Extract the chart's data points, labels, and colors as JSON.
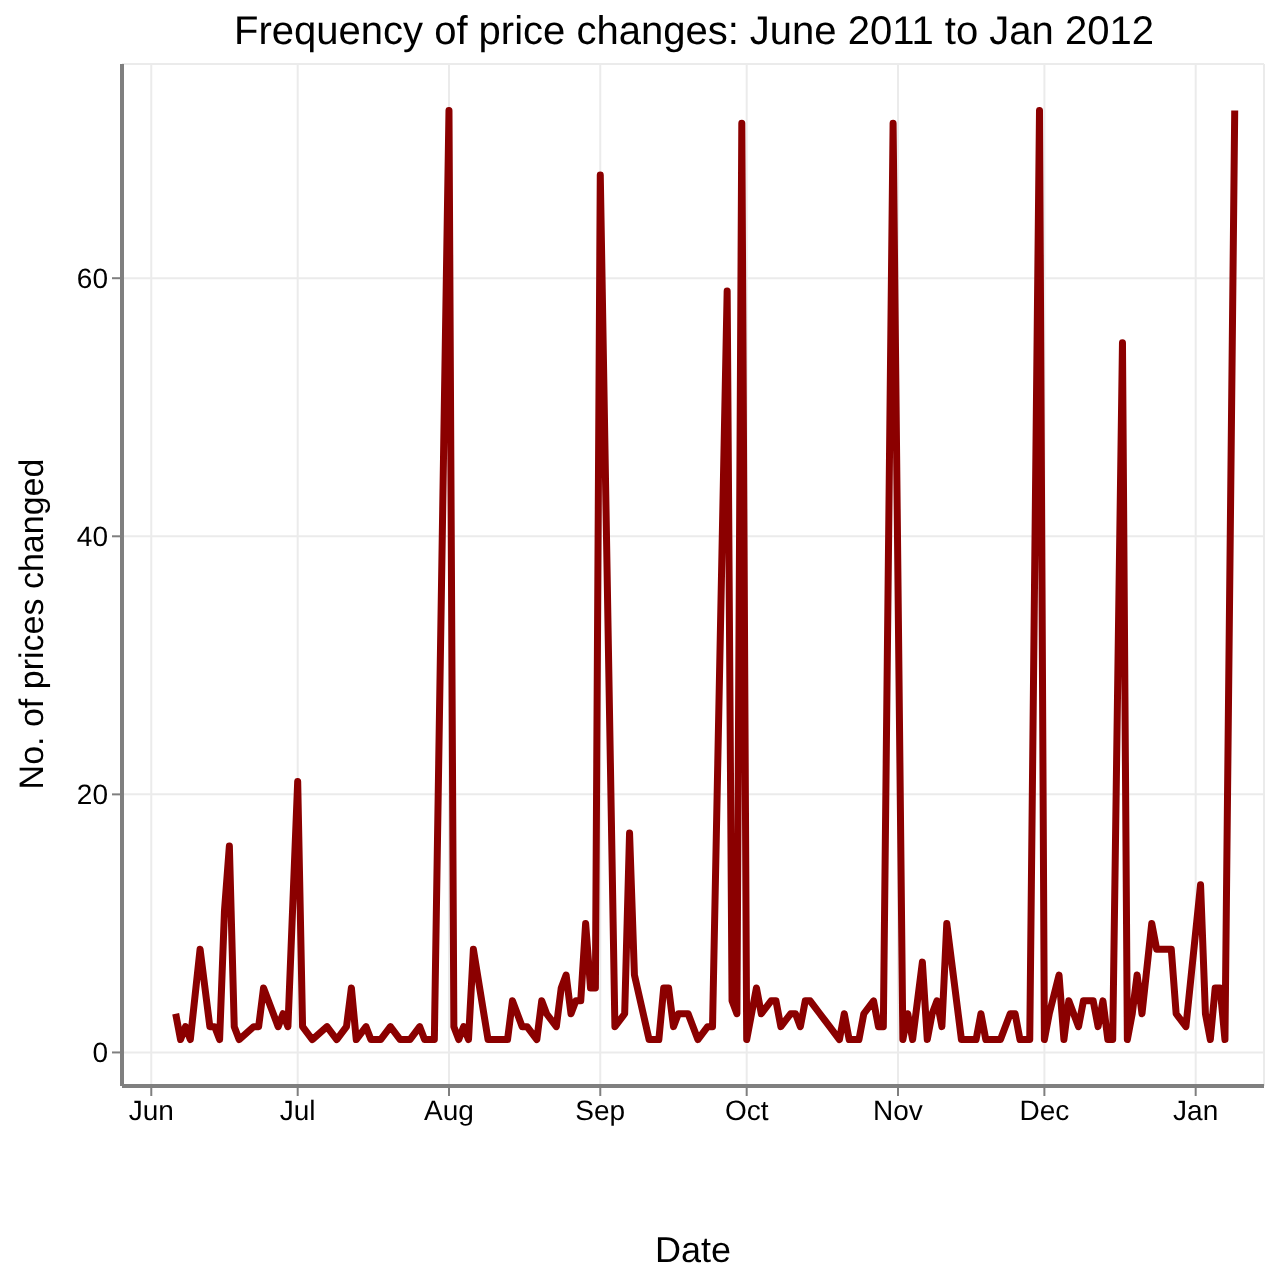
{
  "chart_data": {
    "type": "line",
    "title": "Frequency of price changes: June 2011 to Jan 2012",
    "xlabel": "Date",
    "ylabel": "No. of prices changed",
    "x": [
      "2011-06-06",
      "2011-06-07",
      "2011-06-08",
      "2011-06-09",
      "2011-06-11",
      "2011-06-13",
      "2011-06-14",
      "2011-06-15",
      "2011-06-16",
      "2011-06-17",
      "2011-06-18",
      "2011-06-19",
      "2011-06-22",
      "2011-06-23",
      "2011-06-24",
      "2011-06-27",
      "2011-06-28",
      "2011-06-29",
      "2011-07-01",
      "2011-07-02",
      "2011-07-04",
      "2011-07-07",
      "2011-07-09",
      "2011-07-11",
      "2011-07-12",
      "2011-07-13",
      "2011-07-15",
      "2011-07-16",
      "2011-07-18",
      "2011-07-20",
      "2011-07-22",
      "2011-07-24",
      "2011-07-26",
      "2011-07-27",
      "2011-07-29",
      "2011-08-01",
      "2011-08-02",
      "2011-08-03",
      "2011-08-04",
      "2011-08-05",
      "2011-08-06",
      "2011-08-09",
      "2011-08-13",
      "2011-08-14",
      "2011-08-16",
      "2011-08-17",
      "2011-08-19",
      "2011-08-20",
      "2011-08-21",
      "2011-08-23",
      "2011-08-24",
      "2011-08-25",
      "2011-08-26",
      "2011-08-27",
      "2011-08-28",
      "2011-08-29",
      "2011-08-30",
      "2011-08-31",
      "2011-09-01",
      "2011-09-04",
      "2011-09-06",
      "2011-09-07",
      "2011-09-08",
      "2011-09-11",
      "2011-09-13",
      "2011-09-14",
      "2011-09-15",
      "2011-09-16",
      "2011-09-17",
      "2011-09-19",
      "2011-09-21",
      "2011-09-23",
      "2011-09-24",
      "2011-09-27",
      "2011-09-28",
      "2011-09-29",
      "2011-09-30",
      "2011-10-01",
      "2011-10-03",
      "2011-10-04",
      "2011-10-06",
      "2011-10-07",
      "2011-10-08",
      "2011-10-10",
      "2011-10-11",
      "2011-10-12",
      "2011-10-13",
      "2011-10-14",
      "2011-10-16",
      "2011-10-18",
      "2011-10-20",
      "2011-10-21",
      "2011-10-22",
      "2011-10-24",
      "2011-10-25",
      "2011-10-27",
      "2011-10-28",
      "2011-10-29",
      "2011-10-31",
      "2011-11-02",
      "2011-11-03",
      "2011-11-04",
      "2011-11-06",
      "2011-11-07",
      "2011-11-08",
      "2011-11-09",
      "2011-11-10",
      "2011-11-11",
      "2011-11-12",
      "2011-11-14",
      "2011-11-17",
      "2011-11-18",
      "2011-11-19",
      "2011-11-22",
      "2011-11-24",
      "2011-11-25",
      "2011-11-26",
      "2011-11-28",
      "2011-11-30",
      "2011-12-01",
      "2011-12-02",
      "2011-12-04",
      "2011-12-05",
      "2011-12-06",
      "2011-12-07",
      "2011-12-08",
      "2011-12-09",
      "2011-12-11",
      "2011-12-12",
      "2011-12-13",
      "2011-12-14",
      "2011-12-15",
      "2011-12-17",
      "2011-12-18",
      "2011-12-19",
      "2011-12-20",
      "2011-12-21",
      "2011-12-23",
      "2011-12-24",
      "2011-12-27",
      "2011-12-28",
      "2011-12-30",
      "2012-01-02",
      "2012-01-03",
      "2012-01-04",
      "2012-01-05",
      "2012-01-06",
      "2012-01-07",
      "2012-01-09"
    ],
    "series": [
      {
        "color": "#8b0000",
        "values": [
          3,
          1,
          2,
          1,
          8,
          2,
          2,
          1,
          11,
          16,
          2,
          1,
          2,
          2,
          5,
          2,
          3,
          2,
          21,
          2,
          1,
          2,
          1,
          2,
          5,
          1,
          2,
          1,
          1,
          2,
          1,
          1,
          2,
          1,
          1,
          73,
          2,
          1,
          2,
          1,
          8,
          1,
          1,
          4,
          2,
          2,
          1,
          4,
          3,
          2,
          5,
          6,
          3,
          4,
          4,
          10,
          5,
          5,
          68,
          2,
          3,
          17,
          6,
          1,
          1,
          5,
          5,
          2,
          3,
          3,
          1,
          2,
          2,
          59,
          4,
          3,
          72,
          1,
          5,
          3,
          4,
          4,
          2,
          3,
          3,
          2,
          4,
          4,
          3,
          2,
          1,
          3,
          1,
          1,
          3,
          4,
          2,
          2,
          72,
          1,
          3,
          1,
          7,
          1,
          3,
          4,
          2,
          10,
          7,
          1,
          1,
          3,
          1,
          1,
          3,
          3,
          1,
          1,
          73,
          1,
          3,
          6,
          1,
          4,
          3,
          2,
          4,
          4,
          2,
          4,
          1,
          1,
          55,
          1,
          3,
          6,
          3,
          10,
          8,
          8,
          3,
          2,
          13,
          3,
          1,
          5,
          5,
          1,
          73
        ]
      }
    ],
    "xlim": [
      "2011-05-26",
      "2012-01-15"
    ],
    "xticks": [
      {
        "value": "2011-06-01",
        "label": "Jun"
      },
      {
        "value": "2011-07-01",
        "label": "Jul"
      },
      {
        "value": "2011-08-01",
        "label": "Aug"
      },
      {
        "value": "2011-09-01",
        "label": "Sep"
      },
      {
        "value": "2011-10-01",
        "label": "Oct"
      },
      {
        "value": "2011-11-01",
        "label": "Nov"
      },
      {
        "value": "2011-12-01",
        "label": "Dec"
      },
      {
        "value": "2012-01-01",
        "label": "Jan"
      }
    ],
    "ylim": [
      -2.6,
      76.6
    ],
    "yticks": [
      0,
      20,
      40,
      60
    ],
    "grid": true,
    "marker": "none"
  }
}
